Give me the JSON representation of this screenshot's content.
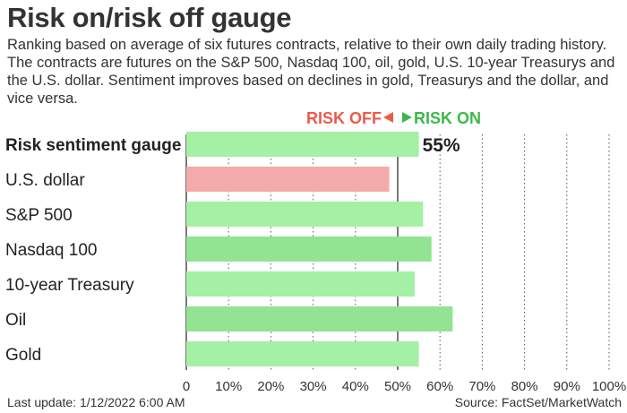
{
  "title": "Risk on/risk off gauge",
  "subtitle": "Ranking based on average of six futures contracts, relative to their own daily trading history. The contracts are futures on the S&P 500, Nasdaq 100, oil, gold, U.S. 10-year Treasurys and the U.S. dollar. Sentiment improves based on declines in gold, Treasurys and the dollar, and vice versa.",
  "footer": {
    "last_update": "Last update: 1/12/2022 6:00 AM",
    "source": "Source: FactSet/MarketWatch"
  },
  "chart_data": {
    "type": "bar",
    "orientation": "horizontal",
    "categories": [
      "Risk sentiment gauge",
      "U.S. dollar",
      "S&P 500",
      "Nasdaq 100",
      "10-year Treasury",
      "Oil",
      "Gold"
    ],
    "values": [
      55,
      48,
      56,
      58,
      54,
      63,
      55
    ],
    "data_labels": [
      "55%",
      "",
      "",
      "",
      "",
      "",
      ""
    ],
    "xlim": [
      0,
      100
    ],
    "x_ticks": [
      "0",
      "10%",
      "20%",
      "30%",
      "40%",
      "50%",
      "60%",
      "70%",
      "80%",
      "90%",
      "100%"
    ],
    "grid": "vertical dotted",
    "threshold": 50,
    "risk_off_label": "RISK OFF",
    "risk_on_label": "RISK ON",
    "colors": {
      "risk_on": "#a4f0a4",
      "risk_on_alt": "#92e492",
      "risk_off": "#f4aaaa",
      "risk_off_text": "#ee5a4a",
      "risk_on_text": "#3cb84a"
    }
  }
}
